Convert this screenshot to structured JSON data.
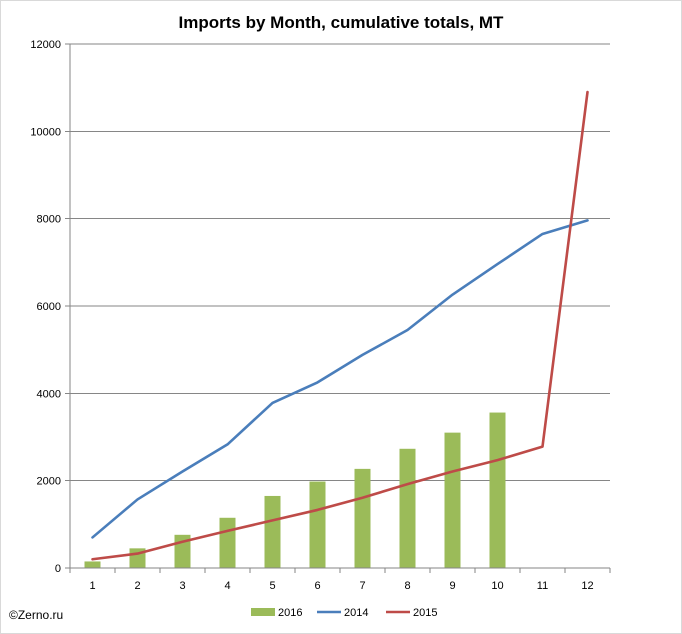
{
  "chart_data": {
    "type": "bar",
    "title": "Imports by Month, cumulative totals, MT",
    "xlabel": "",
    "ylabel": "",
    "categories": [
      "1",
      "2",
      "3",
      "4",
      "5",
      "6",
      "7",
      "8",
      "9",
      "10",
      "11",
      "12"
    ],
    "ylim": [
      0,
      12000
    ],
    "yticks": [
      "0",
      "2000",
      "4000",
      "6000",
      "8000",
      "10000",
      "12000"
    ],
    "grid": true,
    "legend_position": "bottom",
    "series": [
      {
        "name": "2016",
        "type": "bar",
        "color": "#9bbb59",
        "values": [
          150,
          450,
          760,
          1150,
          1650,
          1980,
          2270,
          2730,
          3100,
          3560,
          null,
          null
        ]
      },
      {
        "name": "2014",
        "type": "line",
        "color": "#4a7ebb",
        "values": [
          700,
          1570,
          2210,
          2830,
          3780,
          4250,
          4880,
          5450,
          6260,
          6960,
          7650,
          7960
        ]
      },
      {
        "name": "2015",
        "type": "line",
        "color": "#be4b48",
        "values": [
          200,
          330,
          600,
          850,
          1090,
          1330,
          1610,
          1920,
          2210,
          2470,
          2780,
          10900
        ]
      }
    ]
  },
  "credit": "©Zerno.ru"
}
